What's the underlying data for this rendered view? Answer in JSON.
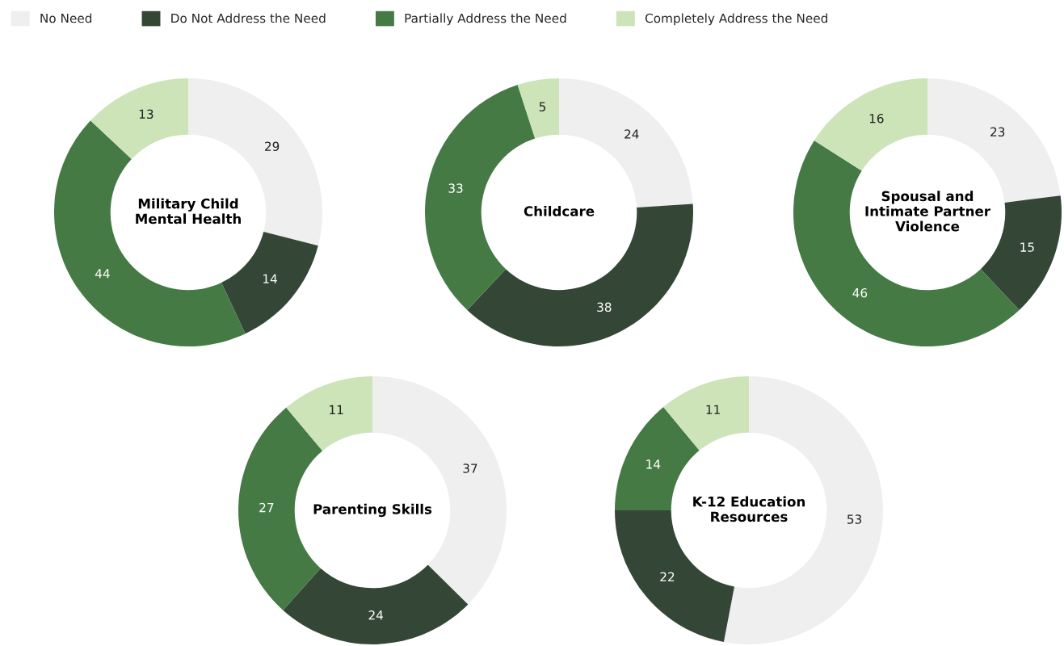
{
  "chart_data": [
    {
      "type": "donut",
      "title": "Military Child\nMental Health",
      "categories": [
        "No Need",
        "Do Not Address the Need",
        "Partially Address the Need",
        "Completely Address the Need"
      ],
      "values": [
        29,
        14,
        44,
        13
      ],
      "colors": [
        "#efefef",
        "#344636",
        "#457a45",
        "#cce4b8"
      ],
      "data_labels": true,
      "legend": "top"
    },
    {
      "type": "donut",
      "title": "Childcare",
      "categories": [
        null,
        null,
        null,
        null
      ],
      "values": [
        24,
        38,
        33,
        5
      ],
      "colors": [
        "#efefef",
        "#344636",
        "#457a45",
        "#cce4b8"
      ],
      "data_labels": true
    },
    {
      "type": "donut",
      "title": "Spousal and\nIntimate Partner\nViolence",
      "categories": [
        null,
        null,
        null,
        null
      ],
      "values": [
        23,
        15,
        46,
        16
      ],
      "colors": [
        "#efefef",
        "#344636",
        "#457a45",
        "#cce4b8"
      ],
      "data_labels": true
    },
    {
      "type": "donut",
      "title": "Parenting Skills",
      "categories": [
        null,
        null,
        null,
        null
      ],
      "values": [
        37,
        24,
        27,
        11
      ],
      "colors": [
        "#efefef",
        "#344636",
        "#457a45",
        "#cce4b8"
      ],
      "data_labels": true
    },
    {
      "type": "donut",
      "title": "K-12 Education\nResources",
      "categories": [
        null,
        null,
        null,
        null
      ],
      "values": [
        53,
        22,
        14,
        11
      ],
      "colors": [
        "#efefef",
        "#344636",
        "#457a45",
        "#cce4b8"
      ],
      "data_labels": true
    }
  ]
}
